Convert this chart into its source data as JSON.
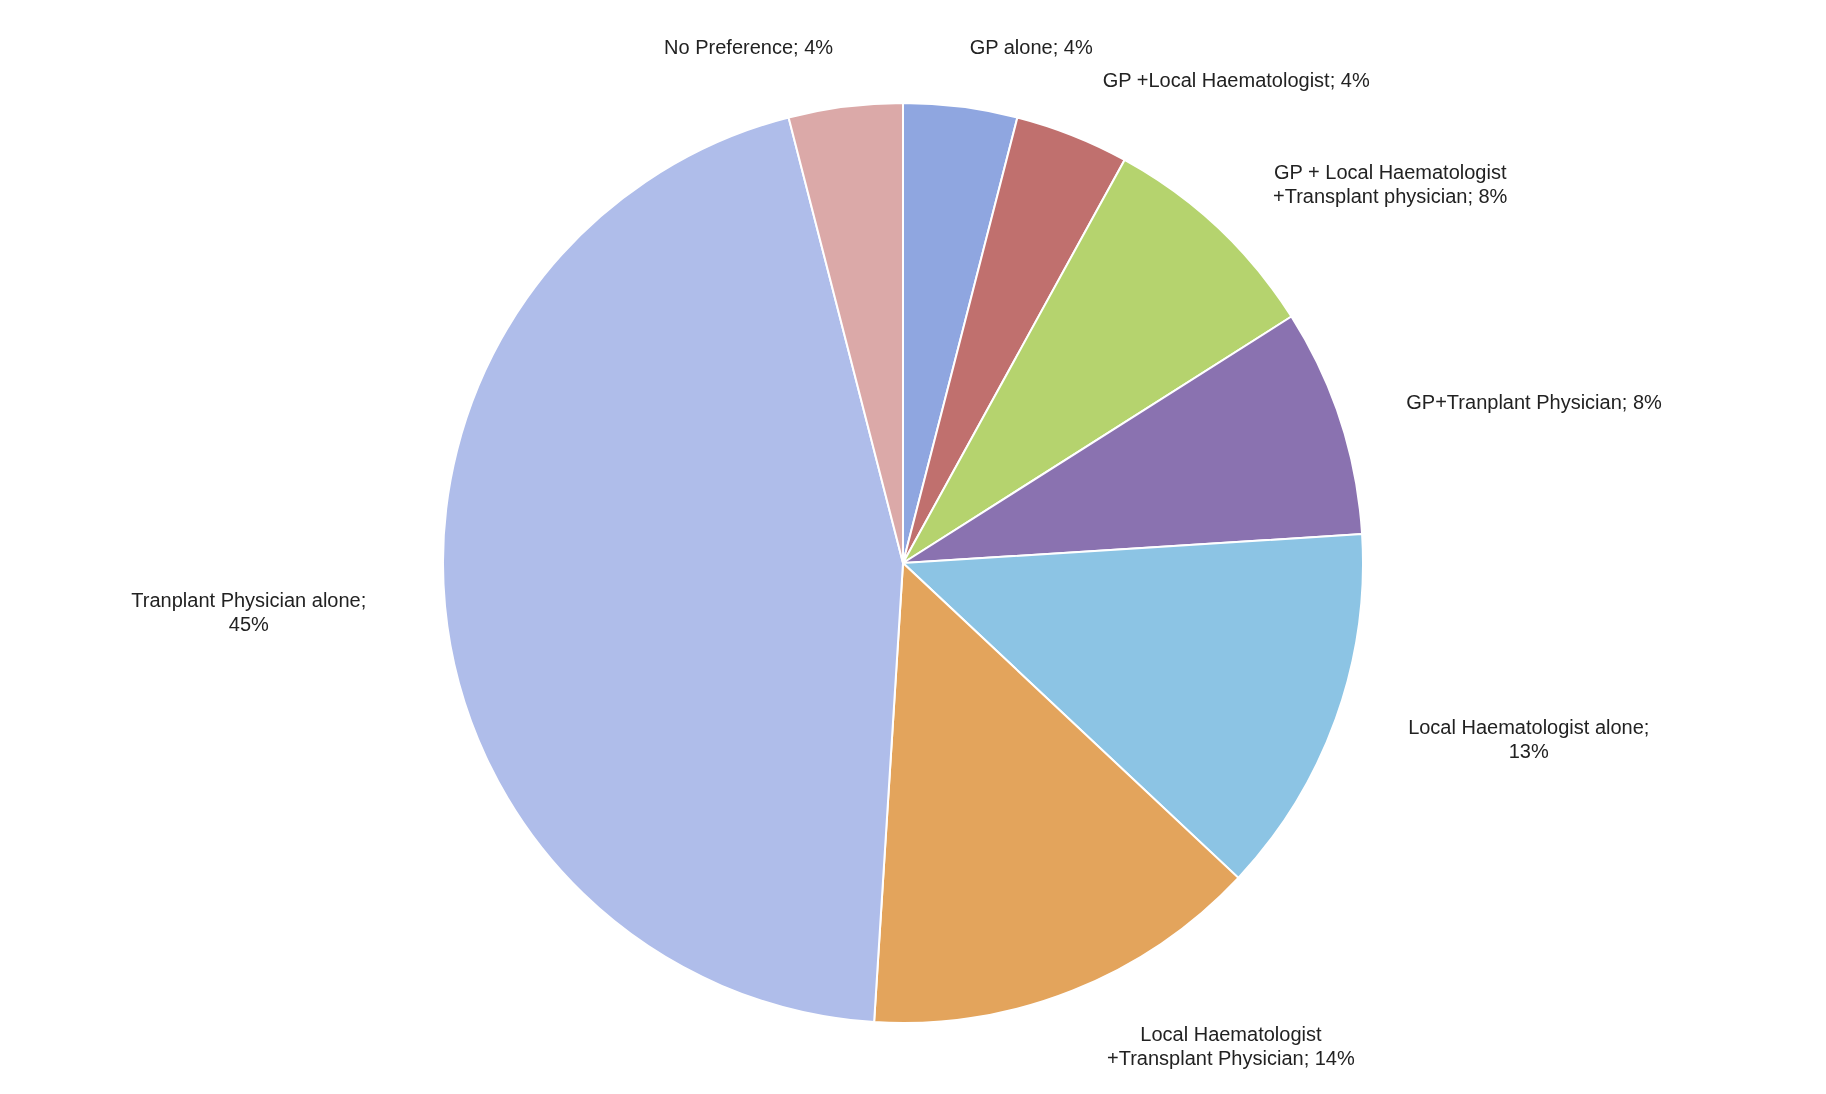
{
  "chart_data": {
    "type": "pie",
    "categories": [
      "GP alone; 4%",
      "GP +Local Haematologist; 4%",
      "GP + Local Haematologist +Transplant physician; 8%",
      "GP+Tranplant Physician; 8%",
      "Local Haematologist alone; 13%",
      "Local Haematologist +Transplant Physician; 14%",
      "Tranplant Physician alone; 45%",
      "No Preference; 4%"
    ],
    "values": [
      4,
      4,
      8,
      8,
      13,
      14,
      45,
      4
    ],
    "colors": [
      "#8fa6e0",
      "#c0706e",
      "#b5d36e",
      "#8a72b0",
      "#8cc4e4",
      "#e3a45c",
      "#afbdea",
      "#dba9a8"
    ]
  }
}
